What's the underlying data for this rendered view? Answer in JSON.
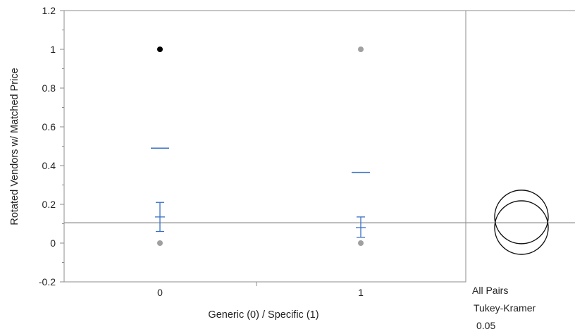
{
  "chart_data": {
    "type": "scatter",
    "title": "",
    "xlabel": "Generic (0) / Specific (1)",
    "ylabel": "Rotated Vendors w/ Matched Price",
    "categories": [
      "0",
      "1"
    ],
    "ylim": [
      -0.2,
      1.2
    ],
    "yticks": [
      "-0.2",
      "0",
      "0.2",
      "0.4",
      "0.6",
      "0.8",
      "1",
      "1.2"
    ],
    "grand_mean": 0.105,
    "points": [
      {
        "group": "0",
        "y": 1,
        "color": "#000000"
      },
      {
        "group": "0",
        "y": 0,
        "color": "#a0a0a0"
      },
      {
        "group": "1",
        "y": 1,
        "color": "#a0a0a0"
      },
      {
        "group": "1",
        "y": 0,
        "color": "#a0a0a0"
      }
    ],
    "groups": [
      {
        "name": "0",
        "mean": 0.135,
        "ci_low": 0.06,
        "ci_high": 0.21,
        "std_dev_line": 0.49
      },
      {
        "name": "1",
        "mean": 0.08,
        "ci_low": 0.03,
        "ci_high": 0.135,
        "std_dev_line": 0.365
      }
    ],
    "comparison": {
      "method": [
        "All Pairs",
        "Tukey-Kramer",
        "0.05"
      ],
      "circles": [
        {
          "group": "0",
          "center": 0.135
        },
        {
          "group": "1",
          "center": 0.08
        }
      ]
    },
    "colors": {
      "error_bars": "#3a6fc4",
      "grand_mean_line": "#8c8c8c",
      "frame": "#8c8c8c"
    }
  }
}
